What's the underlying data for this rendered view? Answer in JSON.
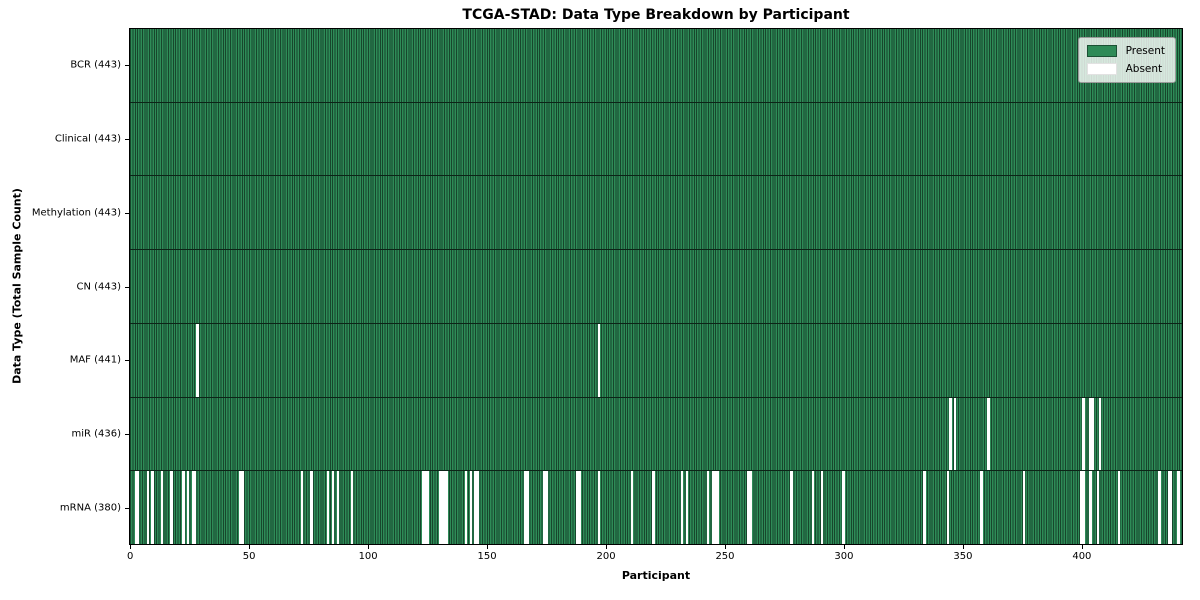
{
  "chart_data": {
    "type": "heatmap",
    "title": "TCGA-STAD: Data Type Breakdown by Participant",
    "xlabel": "Participant",
    "ylabel": "Data Type (Total Sample Count)",
    "n_participants": 443,
    "x_ticks": [
      0,
      50,
      100,
      150,
      200,
      250,
      300,
      350,
      400
    ],
    "legend_position": "upper right",
    "grid": false,
    "colors": {
      "present": "#2e8b57",
      "present_edge": "#17462c",
      "absent": "#ffffff",
      "row_divider": "#0c2417"
    },
    "legend": [
      {
        "label": "Present",
        "color": "#2e8b57"
      },
      {
        "label": "Absent",
        "color": "#ffffff"
      }
    ],
    "rows": [
      {
        "data_type": "BCR",
        "label": "BCR (443)",
        "present_count": 443,
        "absent_participants": []
      },
      {
        "data_type": "Clinical",
        "label": "Clinical (443)",
        "present_count": 443,
        "absent_participants": []
      },
      {
        "data_type": "Methylation",
        "label": "Methylation (443)",
        "present_count": 443,
        "absent_participants": []
      },
      {
        "data_type": "CN",
        "label": "CN (443)",
        "present_count": 443,
        "absent_participants": []
      },
      {
        "data_type": "MAF",
        "label": "MAF (441)",
        "present_count": 441,
        "absent_participants": [
          28,
          197
        ]
      },
      {
        "data_type": "miR",
        "label": "miR (436)",
        "present_count": 436,
        "absent_participants": [
          345,
          347,
          361,
          401,
          404,
          405,
          408
        ]
      },
      {
        "data_type": "mRNA",
        "label": "mRNA (380)",
        "present_count": 380,
        "absent_participants": [
          2,
          3,
          7,
          9,
          13,
          17,
          22,
          24,
          26,
          27,
          46,
          47,
          72,
          76,
          83,
          85,
          87,
          93,
          123,
          124,
          125,
          130,
          131,
          132,
          133,
          141,
          143,
          145,
          146,
          166,
          167,
          174,
          175,
          188,
          189,
          197,
          211,
          220,
          232,
          234,
          243,
          245,
          246,
          247,
          260,
          261,
          278,
          287,
          291,
          300,
          334,
          344,
          358,
          376,
          400,
          401,
          404,
          407,
          416,
          433,
          437,
          438,
          441
        ]
      }
    ]
  }
}
